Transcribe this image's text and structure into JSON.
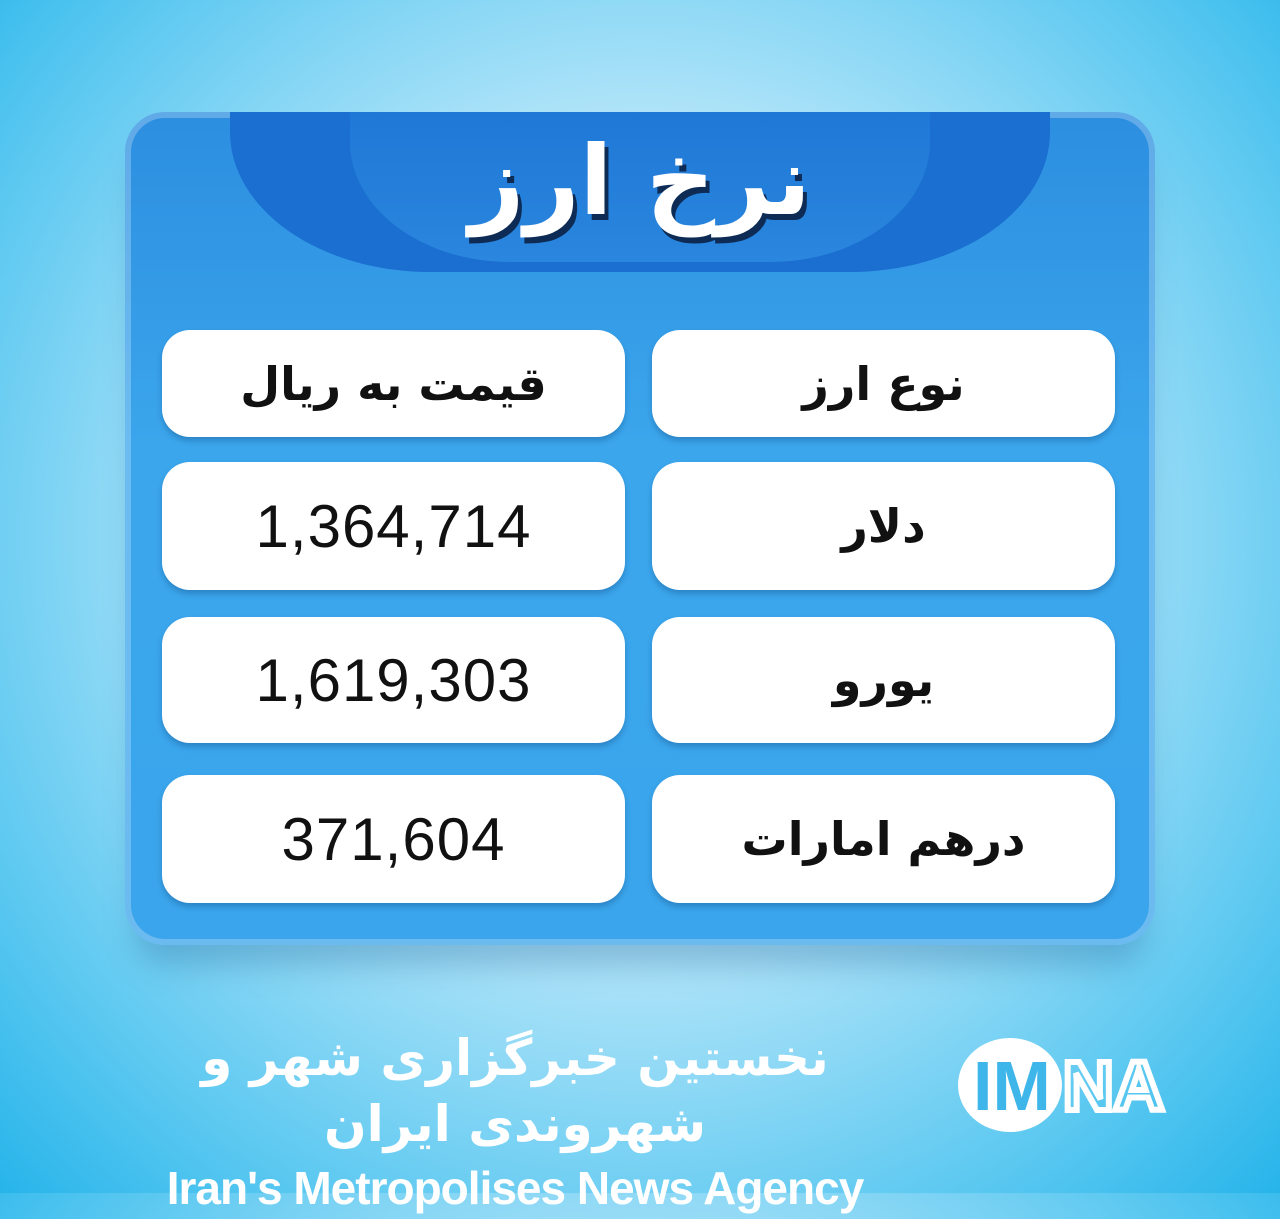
{
  "title": "نرخ ارز",
  "table": {
    "headers": {
      "price": "قیمت به ریال",
      "currency": "نوع ارز"
    },
    "rows": [
      {
        "currency": "دلار",
        "price": "1,364,714"
      },
      {
        "currency": "یورو",
        "price": "1,619,303"
      },
      {
        "currency": "درهم امارات",
        "price": "371,604"
      }
    ]
  },
  "footer": {
    "tagline_fa": "نخستین خبرگزاری شهر و شهروندی ایران",
    "tagline_en": "Iran's Metropolises News Agency",
    "logo_text": "IMNA"
  },
  "colors": {
    "panel": "#3aa5ec",
    "tab": "#1a6fd0",
    "background": "#bde8fa"
  }
}
